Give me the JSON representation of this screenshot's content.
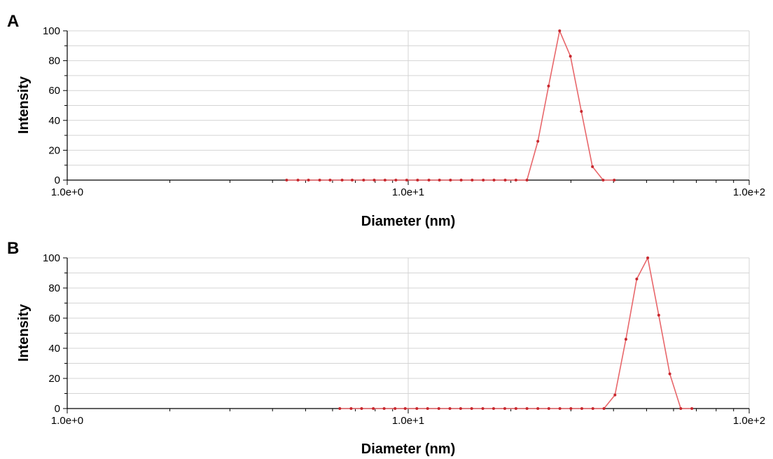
{
  "chart_data": [
    {
      "type": "line",
      "panel_label": "A",
      "xlabel": "Diameter (nm)",
      "ylabel": "Intensity",
      "x_scale": "log",
      "xlim": [
        1,
        100
      ],
      "ylim": [
        0,
        100
      ],
      "x_tick_labels": [
        "1.0e+0",
        "1.0e+1",
        "1.0e+2"
      ],
      "y_ticks": [
        0,
        20,
        40,
        60,
        80,
        100
      ],
      "grid": true,
      "line_color": "#e8676b",
      "marker_color": "#c8282e",
      "series": [
        {
          "x": [
            4.4,
            4.75,
            5.1,
            5.5,
            5.9,
            6.4,
            6.85,
            7.4,
            7.95,
            8.55,
            9.2,
            9.9,
            10.65,
            11.5,
            12.35,
            13.3,
            14.3,
            15.4,
            16.6,
            17.85,
            19.25,
            20.7,
            22.3,
            24.0,
            25.8,
            27.8,
            29.9,
            32.2,
            34.7,
            37.3,
            40.2
          ],
          "y": [
            0,
            0,
            0,
            0,
            0,
            0,
            0,
            0,
            0,
            0,
            0,
            0,
            0,
            0,
            0,
            0,
            0,
            0,
            0,
            0,
            0,
            0,
            0,
            26,
            63,
            100,
            83,
            46,
            9,
            0,
            0
          ]
        }
      ]
    },
    {
      "type": "line",
      "panel_label": "B",
      "xlabel": "Diameter (nm)",
      "ylabel": "Intensity",
      "x_scale": "log",
      "xlim": [
        1,
        100
      ],
      "ylim": [
        0,
        100
      ],
      "x_tick_labels": [
        "1.0e+0",
        "1.0e+1",
        "1.0e+2"
      ],
      "y_ticks": [
        0,
        20,
        40,
        60,
        80,
        100
      ],
      "grid": true,
      "line_color": "#e8676b",
      "marker_color": "#c8282e",
      "series": [
        {
          "x": [
            6.3,
            6.8,
            7.3,
            7.9,
            8.5,
            9.15,
            9.8,
            10.6,
            11.4,
            12.3,
            13.25,
            14.25,
            15.35,
            16.55,
            17.8,
            19.2,
            20.7,
            22.3,
            24.0,
            25.85,
            27.85,
            30.0,
            32.3,
            34.8,
            37.5,
            40.4,
            43.5,
            46.8,
            50.4,
            54.3,
            58.5,
            63.0,
            67.9
          ],
          "y": [
            0,
            0,
            0,
            0,
            0,
            0,
            0,
            0,
            0,
            0,
            0,
            0,
            0,
            0,
            0,
            0,
            0,
            0,
            0,
            0,
            0,
            0,
            0,
            0,
            0,
            9,
            46,
            86,
            100,
            62,
            23,
            0,
            0
          ]
        }
      ]
    }
  ]
}
